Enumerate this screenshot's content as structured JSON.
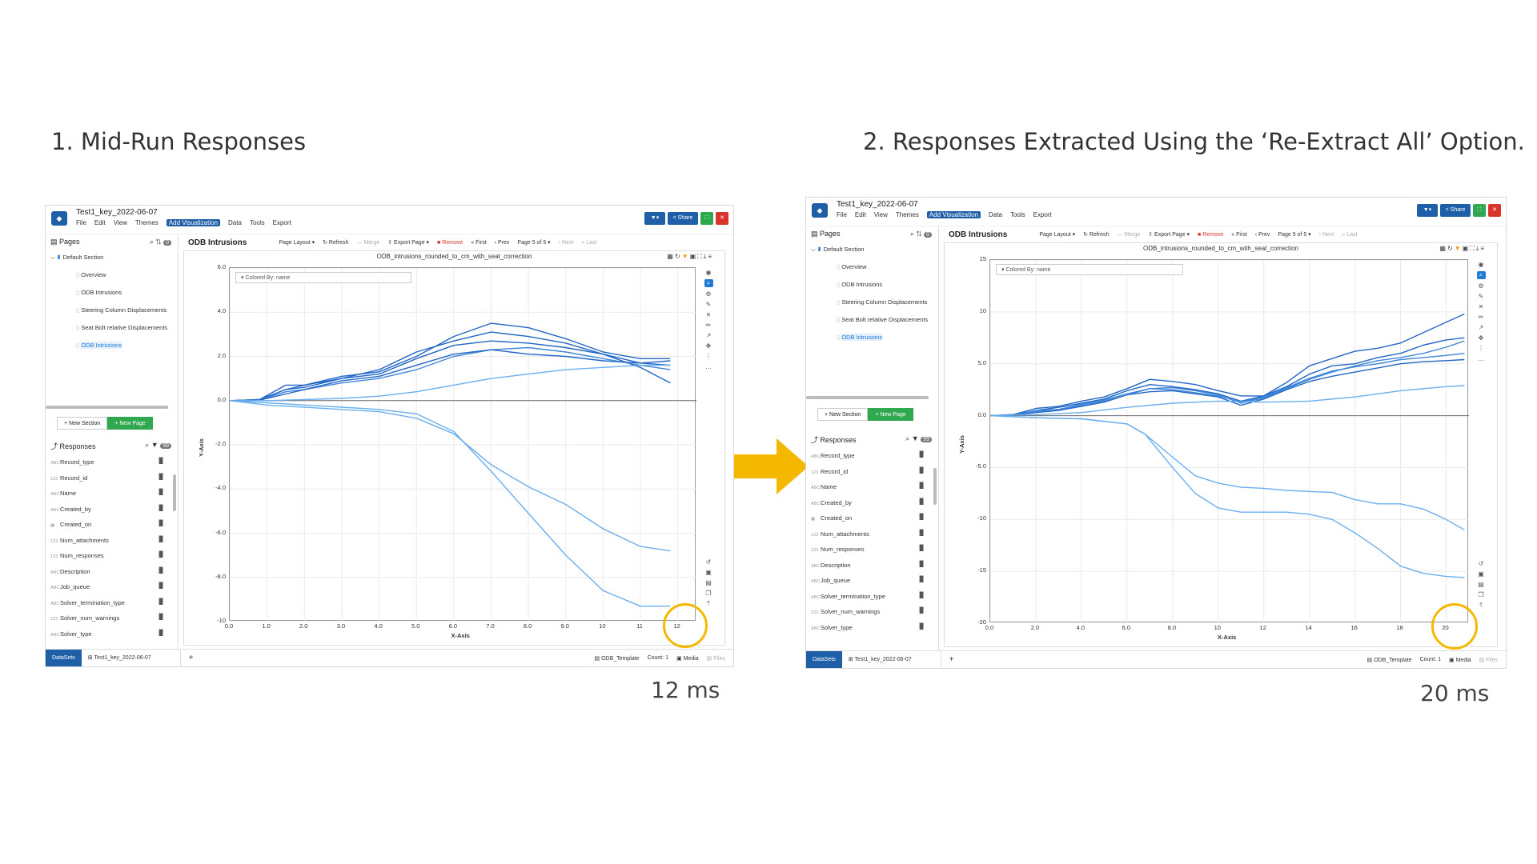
{
  "headings": {
    "left": "1. Mid-Run Responses",
    "right": "2. Responses Extracted Using the ‘Re-Extract All’ Option."
  },
  "timings": {
    "left": "12 ms",
    "right": "20 ms"
  },
  "colors": {
    "accent": "#1f5fa8",
    "highlight_circle": "#f5b800",
    "arrow": "#f5b800",
    "line_dark": "#2166c6",
    "line_light": "#6aaef0"
  },
  "app": {
    "filename": "Test1_key_2022-06-07",
    "menu": [
      "File",
      "Edit",
      "View",
      "Themes",
      "Add Visualization",
      "Data",
      "Tools",
      "Export"
    ],
    "window_buttons": {
      "filter": "▼▾",
      "share": "< Share",
      "maximize": "⛶",
      "close": "✕"
    },
    "pages_panel": {
      "title": "Pages",
      "badge": "0",
      "section": "Default Section",
      "pages": [
        "Overview",
        "ODB Intrusions",
        "Steering Column Displacements",
        "Seat Bolt relative Displacements",
        "ODB Intrusions"
      ],
      "new_section": "+ New Section",
      "new_page": "+ New Page"
    },
    "responses_panel": {
      "title": "Responses",
      "badge": "99",
      "items": [
        {
          "type": "ABC",
          "name": "Record_type"
        },
        {
          "type": "123",
          "name": "Record_id"
        },
        {
          "type": "ABC",
          "name": "Name"
        },
        {
          "type": "ABC",
          "name": "Created_by"
        },
        {
          "type": "▦",
          "name": "Created_on"
        },
        {
          "type": "123",
          "name": "Num_attachments"
        },
        {
          "type": "123",
          "name": "Num_responses"
        },
        {
          "type": "ABC",
          "name": "Description"
        },
        {
          "type": "ABC",
          "name": "Job_queue"
        },
        {
          "type": "ABC",
          "name": "Solver_termination_type"
        },
        {
          "type": "123",
          "name": "Solver_num_warnings"
        },
        {
          "type": "ABC",
          "name": "Solver_type"
        }
      ]
    },
    "toolbar": {
      "page_name": "ODB Intrusions",
      "page_layout": "Page Layout ▾",
      "refresh": "↻ Refresh",
      "merge": "↔ Merge",
      "export_page": "⇧ Export Page ▾",
      "remove": "■ Remove",
      "first": "« First",
      "prev": "‹ Prev",
      "page_of": "Page 5 of 5 ▾",
      "next": "› Next",
      "last": "» Last"
    },
    "viz": {
      "title": "ODB_intrusions_rounded_to_cm_with_seat_correction",
      "colored_by": "▾   Colored By: name",
      "ylabel": "Y-Axis",
      "xlabel": "X-Axis"
    },
    "statusbar": {
      "datasets": "DataSets",
      "tab": "⊞ Test1_key_2022-06-07",
      "plus": "+",
      "template": "▤ ODB_Template",
      "count": "Count: 1",
      "media": "▣ Media",
      "files": "▤ Files"
    }
  },
  "chart_data": [
    {
      "type": "line",
      "title": "ODB_intrusions_rounded_to_cm_with_seat_correction",
      "xlabel": "X-Axis",
      "ylabel": "Y-Axis",
      "xlim": [
        0,
        12.5
      ],
      "ylim": [
        -10,
        6
      ],
      "x_ticks": [
        "0.0",
        "1.0",
        "2.0",
        "3.0",
        "4.0",
        "5.0",
        "6.0",
        "7.0",
        "8.0",
        "9.0",
        "10",
        "11",
        "12"
      ],
      "y_ticks": [
        "6.0",
        "4.0",
        "2.0",
        "0.0",
        "-2.0",
        "-4.0",
        "-6.0",
        "-8.0",
        "-10"
      ],
      "grid": true,
      "series": [
        {
          "shade": "dark",
          "x": [
            0,
            0.8,
            1.5,
            2,
            3,
            4,
            5,
            6,
            7,
            7.5,
            8,
            9,
            10,
            11,
            11.8
          ],
          "y": [
            0,
            0.05,
            0.7,
            0.7,
            1.1,
            1.3,
            2.0,
            2.9,
            3.5,
            3.4,
            3.3,
            2.8,
            2.2,
            1.9,
            1.9
          ]
        },
        {
          "shade": "dark",
          "x": [
            0,
            0.8,
            1.5,
            2,
            3,
            4,
            5,
            6,
            7,
            8,
            9,
            10,
            11,
            11.8
          ],
          "y": [
            0,
            0.05,
            0.5,
            0.7,
            1.0,
            1.4,
            2.2,
            2.7,
            3.1,
            2.9,
            2.6,
            2.1,
            1.7,
            1.6
          ]
        },
        {
          "shade": "dark",
          "x": [
            0,
            0.8,
            1.5,
            2,
            3,
            4,
            5,
            6,
            7,
            8,
            9,
            10,
            11,
            11.8
          ],
          "y": [
            0,
            0.03,
            0.5,
            0.6,
            1.0,
            1.2,
            1.9,
            2.5,
            2.7,
            2.6,
            2.4,
            2.1,
            1.5,
            0.8
          ]
        },
        {
          "shade": "medium",
          "x": [
            0,
            0.8,
            1.5,
            2,
            3,
            4,
            5,
            6,
            7,
            8,
            9,
            10,
            11,
            11.8
          ],
          "y": [
            0,
            0.03,
            0.4,
            0.5,
            0.8,
            1.0,
            1.4,
            2.0,
            2.3,
            2.4,
            2.2,
            1.9,
            1.6,
            1.4
          ]
        },
        {
          "shade": "dark",
          "x": [
            0,
            0.8,
            1.5,
            2,
            3,
            4,
            5,
            6,
            7,
            8,
            9,
            10,
            11,
            11.8
          ],
          "y": [
            0,
            0.02,
            0.3,
            0.5,
            0.9,
            1.1,
            1.6,
            2.1,
            2.3,
            2.1,
            2.0,
            1.8,
            1.7,
            1.8
          ]
        },
        {
          "shade": "light",
          "x": [
            0,
            1,
            2,
            3,
            4,
            5,
            6,
            7,
            8,
            9,
            10,
            11,
            11.8
          ],
          "y": [
            0,
            0.0,
            0.05,
            0.1,
            0.2,
            0.4,
            0.7,
            1.0,
            1.2,
            1.4,
            1.5,
            1.6,
            1.6
          ]
        },
        {
          "shade": "light",
          "x": [
            0,
            1,
            2,
            3,
            4,
            5,
            6,
            7,
            8,
            9,
            10,
            11,
            11.8
          ],
          "y": [
            0,
            -0.2,
            -0.3,
            -0.4,
            -0.5,
            -0.8,
            -1.5,
            -2.9,
            -3.9,
            -4.7,
            -5.8,
            -6.6,
            -6.8
          ]
        },
        {
          "shade": "light",
          "x": [
            0,
            1,
            2,
            3,
            4,
            5,
            6,
            7,
            8,
            9,
            10,
            11,
            11.8
          ],
          "y": [
            0,
            -0.1,
            -0.2,
            -0.3,
            -0.4,
            -0.6,
            -1.4,
            -3.2,
            -5.1,
            -7.0,
            -8.6,
            -9.3,
            -9.3
          ]
        }
      ]
    },
    {
      "type": "line",
      "title": "ODB_intrusions_rounded_to_cm_with_seat_correction",
      "xlabel": "X-Axis",
      "ylabel": "Y-Axis",
      "xlim": [
        0,
        21
      ],
      "ylim": [
        -20,
        15
      ],
      "x_ticks": [
        "0.0",
        "2.0",
        "4.0",
        "6.0",
        "8.0",
        "10",
        "12",
        "14",
        "16",
        "18",
        "20"
      ],
      "y_ticks": [
        "15",
        "10",
        "5.0",
        "0.0",
        "-5.0",
        "-10",
        "-15",
        "-20"
      ],
      "grid": true,
      "series": [
        {
          "shade": "dark",
          "x": [
            0,
            1,
            2,
            3,
            4,
            5,
            6,
            7,
            8,
            9,
            10,
            11,
            12,
            13,
            14,
            15,
            16,
            17,
            18,
            19,
            20,
            20.8
          ],
          "y": [
            0,
            0.1,
            0.7,
            0.9,
            1.4,
            1.8,
            2.6,
            3.5,
            3.3,
            3.0,
            2.4,
            1.9,
            1.9,
            3.2,
            4.8,
            5.5,
            6.2,
            6.5,
            7.0,
            8.0,
            9.0,
            9.8
          ]
        },
        {
          "shade": "dark",
          "x": [
            0,
            1,
            2,
            3,
            4,
            5,
            6,
            7,
            8,
            9,
            10,
            11,
            12,
            13,
            14,
            15,
            16,
            17,
            18,
            19,
            20,
            20.8
          ],
          "y": [
            0,
            0.1,
            0.5,
            0.8,
            1.2,
            1.6,
            2.4,
            3.0,
            2.8,
            2.5,
            2.1,
            1.4,
            1.9,
            2.8,
            4.0,
            4.8,
            5.0,
            5.6,
            6.0,
            6.8,
            7.3,
            7.5
          ]
        },
        {
          "shade": "medium",
          "x": [
            0,
            1,
            2,
            3,
            4,
            5,
            6,
            7,
            8,
            9,
            10,
            11,
            12,
            13,
            14,
            15,
            16,
            17,
            18,
            19,
            20,
            20.8
          ],
          "y": [
            0,
            0.05,
            0.5,
            0.6,
            1.1,
            1.5,
            2.1,
            2.6,
            2.7,
            2.4,
            2.0,
            1.2,
            1.7,
            2.6,
            3.5,
            4.2,
            4.8,
            5.3,
            5.6,
            6.0,
            6.6,
            7.2
          ]
        },
        {
          "shade": "dark",
          "x": [
            0,
            1,
            2,
            3,
            4,
            5,
            6,
            7,
            8,
            9,
            10,
            11,
            12,
            13,
            14,
            15,
            16,
            17,
            18,
            19,
            20,
            20.8
          ],
          "y": [
            0,
            0.05,
            0.3,
            0.5,
            0.9,
            1.3,
            2.0,
            2.3,
            2.4,
            2.1,
            1.8,
            1.0,
            1.6,
            2.5,
            3.3,
            3.8,
            4.2,
            4.6,
            5.0,
            5.2,
            5.3,
            5.4
          ]
        },
        {
          "shade": "medium",
          "x": [
            0,
            1,
            2,
            3,
            4,
            5,
            6,
            7,
            8,
            9,
            10,
            11,
            12,
            13,
            14,
            15,
            16,
            17,
            18,
            19,
            20,
            20.8
          ],
          "y": [
            0,
            0.05,
            0.4,
            0.6,
            1.0,
            1.4,
            2.0,
            2.6,
            2.5,
            2.2,
            1.9,
            1.3,
            1.8,
            2.7,
            3.6,
            4.3,
            4.7,
            5.0,
            5.4,
            5.6,
            5.8,
            6.0
          ]
        },
        {
          "shade": "light",
          "x": [
            0,
            2,
            4,
            6,
            8,
            10,
            12,
            14,
            16,
            18,
            20,
            20.8
          ],
          "y": [
            0,
            0.1,
            0.3,
            0.8,
            1.2,
            1.4,
            1.3,
            1.4,
            1.8,
            2.4,
            2.8,
            2.9
          ]
        },
        {
          "shade": "light",
          "x": [
            0,
            1,
            2,
            4,
            6,
            6.8,
            8,
            9,
            10,
            11,
            12,
            13,
            14,
            15,
            16,
            17,
            18,
            19,
            20,
            20.8
          ],
          "y": [
            0,
            -0.1,
            -0.2,
            -0.3,
            -0.8,
            -1.8,
            -4.0,
            -5.8,
            -6.5,
            -6.9,
            -7.0,
            -7.2,
            -7.3,
            -7.4,
            -8.1,
            -8.5,
            -8.5,
            -9.0,
            -10.0,
            -11.0
          ]
        },
        {
          "shade": "light",
          "x": [
            0,
            1,
            2,
            4,
            6,
            6.8,
            8,
            9,
            10,
            11,
            12,
            13,
            14,
            15,
            16,
            17,
            18,
            19,
            20,
            20.8
          ],
          "y": [
            0,
            -0.1,
            -0.2,
            -0.3,
            -0.8,
            -1.8,
            -5.0,
            -7.5,
            -8.9,
            -9.3,
            -9.3,
            -9.3,
            -9.5,
            -10.0,
            -11.3,
            -12.8,
            -14.5,
            -15.2,
            -15.5,
            -15.6
          ]
        }
      ]
    }
  ]
}
